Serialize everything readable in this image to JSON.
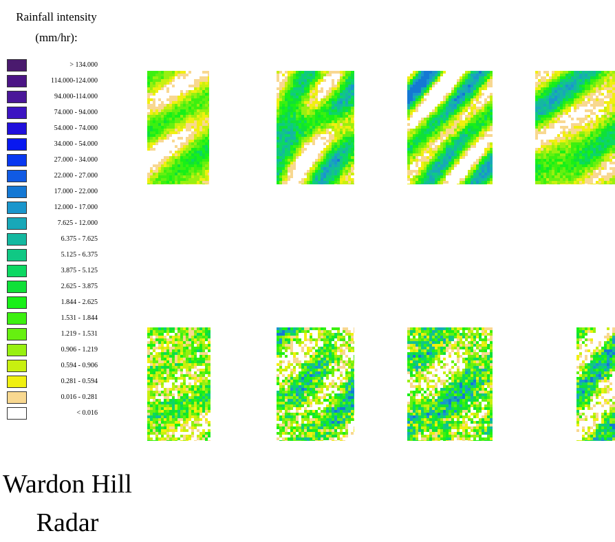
{
  "legend": {
    "title_line1": "Rainfall intensity",
    "title_line2": "(mm/hr):",
    "entries": [
      {
        "label": "> 134.000",
        "color": "#4a1a6e"
      },
      {
        "label": "114.000-124.000",
        "color": "#4b1585"
      },
      {
        "label": "94.000-114.000",
        "color": "#4a1799"
      },
      {
        "label": "74.000 - 94.000",
        "color": "#3c14c2"
      },
      {
        "label": "54.000 - 74.000",
        "color": "#2010dc"
      },
      {
        "label": "34.000 - 54.000",
        "color": "#0818f0"
      },
      {
        "label": "27.000 - 34.000",
        "color": "#0838f0"
      },
      {
        "label": "22.000 - 27.000",
        "color": "#105ae4"
      },
      {
        "label": "17.000 - 22.000",
        "color": "#1478d4"
      },
      {
        "label": "12.000 - 17.000",
        "color": "#1a96cc"
      },
      {
        "label": "7.625 - 12.000",
        "color": "#18a8b8"
      },
      {
        "label": "6.375 - 7.625",
        "color": "#14b8a0"
      },
      {
        "label": "5.125 - 6.375",
        "color": "#10c884"
      },
      {
        "label": "3.875 - 5.125",
        "color": "#0cd862"
      },
      {
        "label": "2.625 - 3.875",
        "color": "#10e038"
      },
      {
        "label": "1.844 - 2.625",
        "color": "#18f018"
      },
      {
        "label": "1.531 - 1.844",
        "color": "#3cf010"
      },
      {
        "label": "1.219 - 1.531",
        "color": "#66f010"
      },
      {
        "label": "0.906 - 1.219",
        "color": "#98f010"
      },
      {
        "label": "0.594 - 0.906",
        "color": "#c8f010"
      },
      {
        "label": "0.281 - 0.594",
        "color": "#f0f010"
      },
      {
        "label": "0.016 - 0.281",
        "color": "#f8d890"
      },
      {
        "label": "< 0.016",
        "color": "#ffffff"
      }
    ]
  },
  "radar_title": {
    "line1": "Wardon Hill",
    "line2": "Radar"
  },
  "panels": [
    {
      "id": "row1-1",
      "row": 1,
      "pattern": "smooth",
      "wetness": 0.6,
      "seed": 11
    },
    {
      "id": "row1-2",
      "row": 1,
      "pattern": "smooth",
      "wetness": 0.85,
      "seed": 23
    },
    {
      "id": "row1-3",
      "row": 1,
      "pattern": "smooth",
      "wetness": 0.8,
      "seed": 37
    },
    {
      "id": "row1-4",
      "row": 1,
      "pattern": "smooth",
      "wetness": 0.75,
      "seed": 41
    },
    {
      "id": "row2-1",
      "row": 2,
      "pattern": "speckled",
      "wetness": 0.65,
      "seed": 53
    },
    {
      "id": "row2-2",
      "row": 2,
      "pattern": "speckled",
      "wetness": 0.75,
      "seed": 67
    },
    {
      "id": "row2-3",
      "row": 2,
      "pattern": "speckled",
      "wetness": 0.8,
      "seed": 79
    },
    {
      "id": "row2-4",
      "row": 2,
      "pattern": "speckled",
      "wetness": 0.7,
      "seed": 83
    }
  ]
}
